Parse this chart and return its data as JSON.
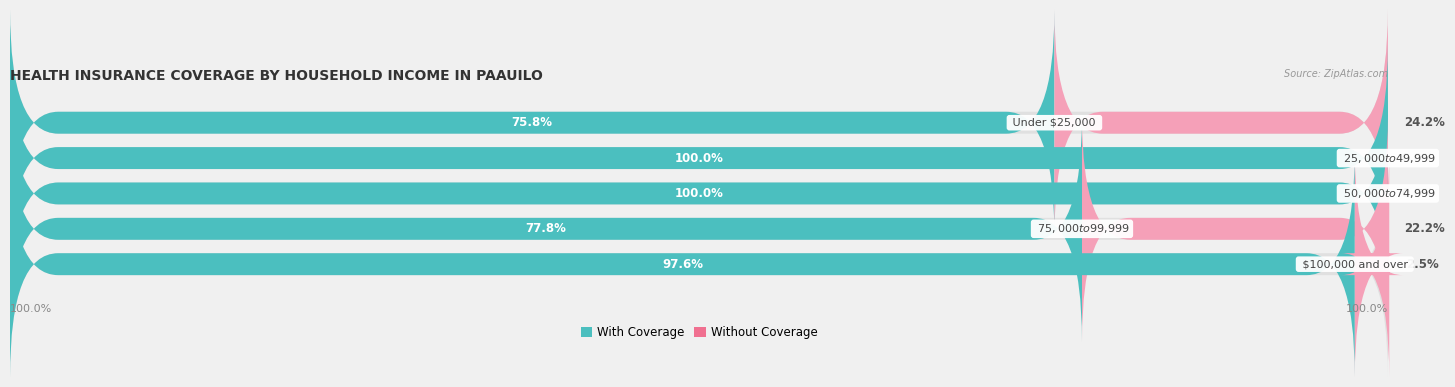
{
  "title": "HEALTH INSURANCE COVERAGE BY HOUSEHOLD INCOME IN PAAUILO",
  "source": "Source: ZipAtlas.com",
  "categories": [
    "Under $25,000",
    "$25,000 to $49,999",
    "$50,000 to $74,999",
    "$75,000 to $99,999",
    "$100,000 and over"
  ],
  "with_coverage": [
    75.8,
    100.0,
    100.0,
    77.8,
    97.6
  ],
  "without_coverage": [
    24.2,
    0.0,
    0.0,
    22.2,
    2.5
  ],
  "color_with": "#4BBFBF",
  "color_without": "#F07090",
  "color_with_light": "#7DD4D4",
  "color_without_light": "#F5A0B8",
  "background_color": "#f0f0f0",
  "bar_bg_color": "#e0e0e0",
  "title_fontsize": 10,
  "label_fontsize": 8.5,
  "tick_fontsize": 8,
  "legend_fontsize": 8.5,
  "left_label_color": "#ffffff",
  "category_label_color": "#444444",
  "right_label_color": "#555555"
}
